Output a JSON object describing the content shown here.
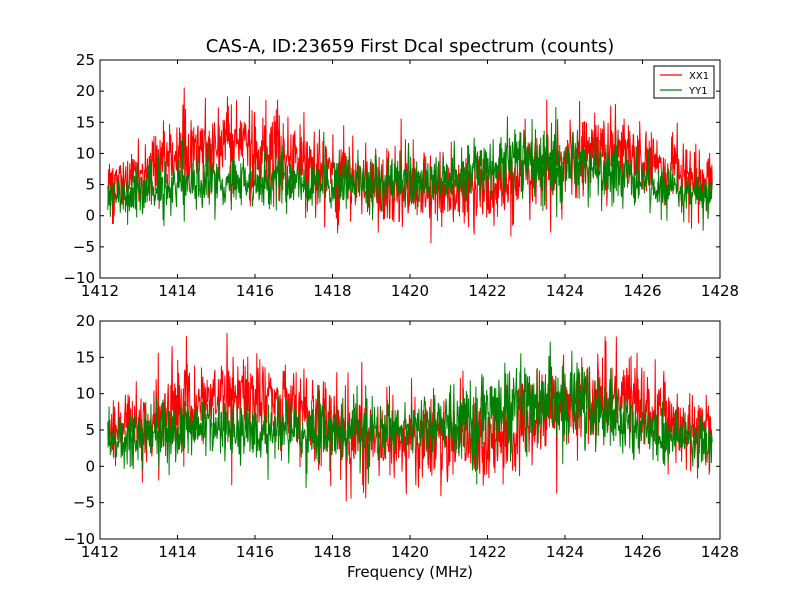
{
  "chart_data": [
    {
      "type": "line",
      "title": "CAS-A, ID:23659 First Dcal spectrum (counts)",
      "xlabel": "",
      "ylabel": "",
      "xlim": [
        1412,
        1428
      ],
      "ylim": [
        -10,
        25
      ],
      "xticks": [
        1412,
        1414,
        1416,
        1418,
        1420,
        1422,
        1424,
        1426,
        1428
      ],
      "yticks": [
        -10,
        -5,
        0,
        5,
        10,
        15,
        20,
        25
      ],
      "x_range": [
        1412.2,
        1427.8
      ],
      "grid": false,
      "legend_position": "top-right",
      "series": [
        {
          "name": "XX1",
          "color": "#ff0000",
          "envelope_x": [
            1412.2,
            1413,
            1414,
            1415,
            1416,
            1417,
            1418,
            1419,
            1420,
            1421,
            1422,
            1423,
            1424,
            1425,
            1426,
            1427,
            1427.8
          ],
          "envelope_mean": [
            4.5,
            6.5,
            9.5,
            11.5,
            11.5,
            9.5,
            6.5,
            4.5,
            4,
            4,
            4.5,
            6,
            8.5,
            10.5,
            9,
            6.5,
            5
          ],
          "envelope_spread": [
            2.5,
            3,
            3.5,
            4,
            4,
            4,
            3.5,
            3.5,
            3.5,
            3.5,
            3.5,
            3.5,
            3.5,
            4,
            3.5,
            3,
            2.5
          ]
        },
        {
          "name": "YY1",
          "color": "#008000",
          "envelope_x": [
            1412.2,
            1413,
            1414,
            1415,
            1416,
            1417,
            1418,
            1419,
            1420,
            1421,
            1422,
            1423,
            1424,
            1425,
            1426,
            1427,
            1427.8
          ],
          "envelope_mean": [
            3,
            4,
            5,
            5.5,
            5.5,
            5.5,
            5.5,
            5.5,
            5.5,
            6,
            7.5,
            9,
            9,
            7.5,
            5.5,
            4,
            3
          ],
          "envelope_spread": [
            2,
            2.5,
            2.5,
            2.5,
            2.5,
            2.5,
            2.5,
            2.5,
            2.5,
            2.5,
            3,
            3.5,
            3.5,
            3,
            2.5,
            2,
            2
          ]
        }
      ]
    },
    {
      "type": "line",
      "title": "",
      "xlabel": "Frequency (MHz)",
      "ylabel": "",
      "xlim": [
        1412,
        1428
      ],
      "ylim": [
        -10,
        20
      ],
      "xticks": [
        1412,
        1414,
        1416,
        1418,
        1420,
        1422,
        1424,
        1426,
        1428
      ],
      "yticks": [
        -10,
        -5,
        0,
        5,
        10,
        15,
        20
      ],
      "x_range": [
        1412.2,
        1427.8
      ],
      "grid": false,
      "series": [
        {
          "name": "",
          "color": "#ff0000",
          "envelope_x": [
            1412.2,
            1413,
            1414,
            1415,
            1416,
            1417,
            1418,
            1419,
            1420,
            1421,
            1422,
            1423,
            1424,
            1425,
            1426,
            1427,
            1427.8
          ],
          "envelope_mean": [
            4,
            6,
            8.5,
            10,
            10,
            8.5,
            6,
            4,
            3.5,
            3.5,
            4,
            5.5,
            8,
            9.5,
            8.5,
            6,
            4.5
          ],
          "envelope_spread": [
            2.5,
            3,
            3.5,
            3.5,
            3.5,
            3.5,
            3.5,
            3.5,
            3.5,
            3.5,
            3.5,
            3.5,
            3.5,
            3.5,
            3.5,
            3,
            2.5
          ]
        },
        {
          "name": "",
          "color": "#008000",
          "envelope_x": [
            1412.2,
            1413,
            1414,
            1415,
            1416,
            1417,
            1418,
            1419,
            1420,
            1421,
            1422,
            1423,
            1424,
            1425,
            1426,
            1427,
            1427.8
          ],
          "envelope_mean": [
            3.5,
            4.5,
            5,
            5,
            5,
            5,
            5,
            5,
            5.5,
            6,
            7.5,
            9,
            9,
            7,
            5,
            4,
            3
          ],
          "envelope_spread": [
            2,
            2.5,
            2.5,
            2.5,
            2.5,
            2.5,
            2.5,
            2.5,
            2.5,
            2.5,
            3,
            3.5,
            3.5,
            3,
            2.5,
            2,
            2
          ]
        }
      ]
    }
  ]
}
